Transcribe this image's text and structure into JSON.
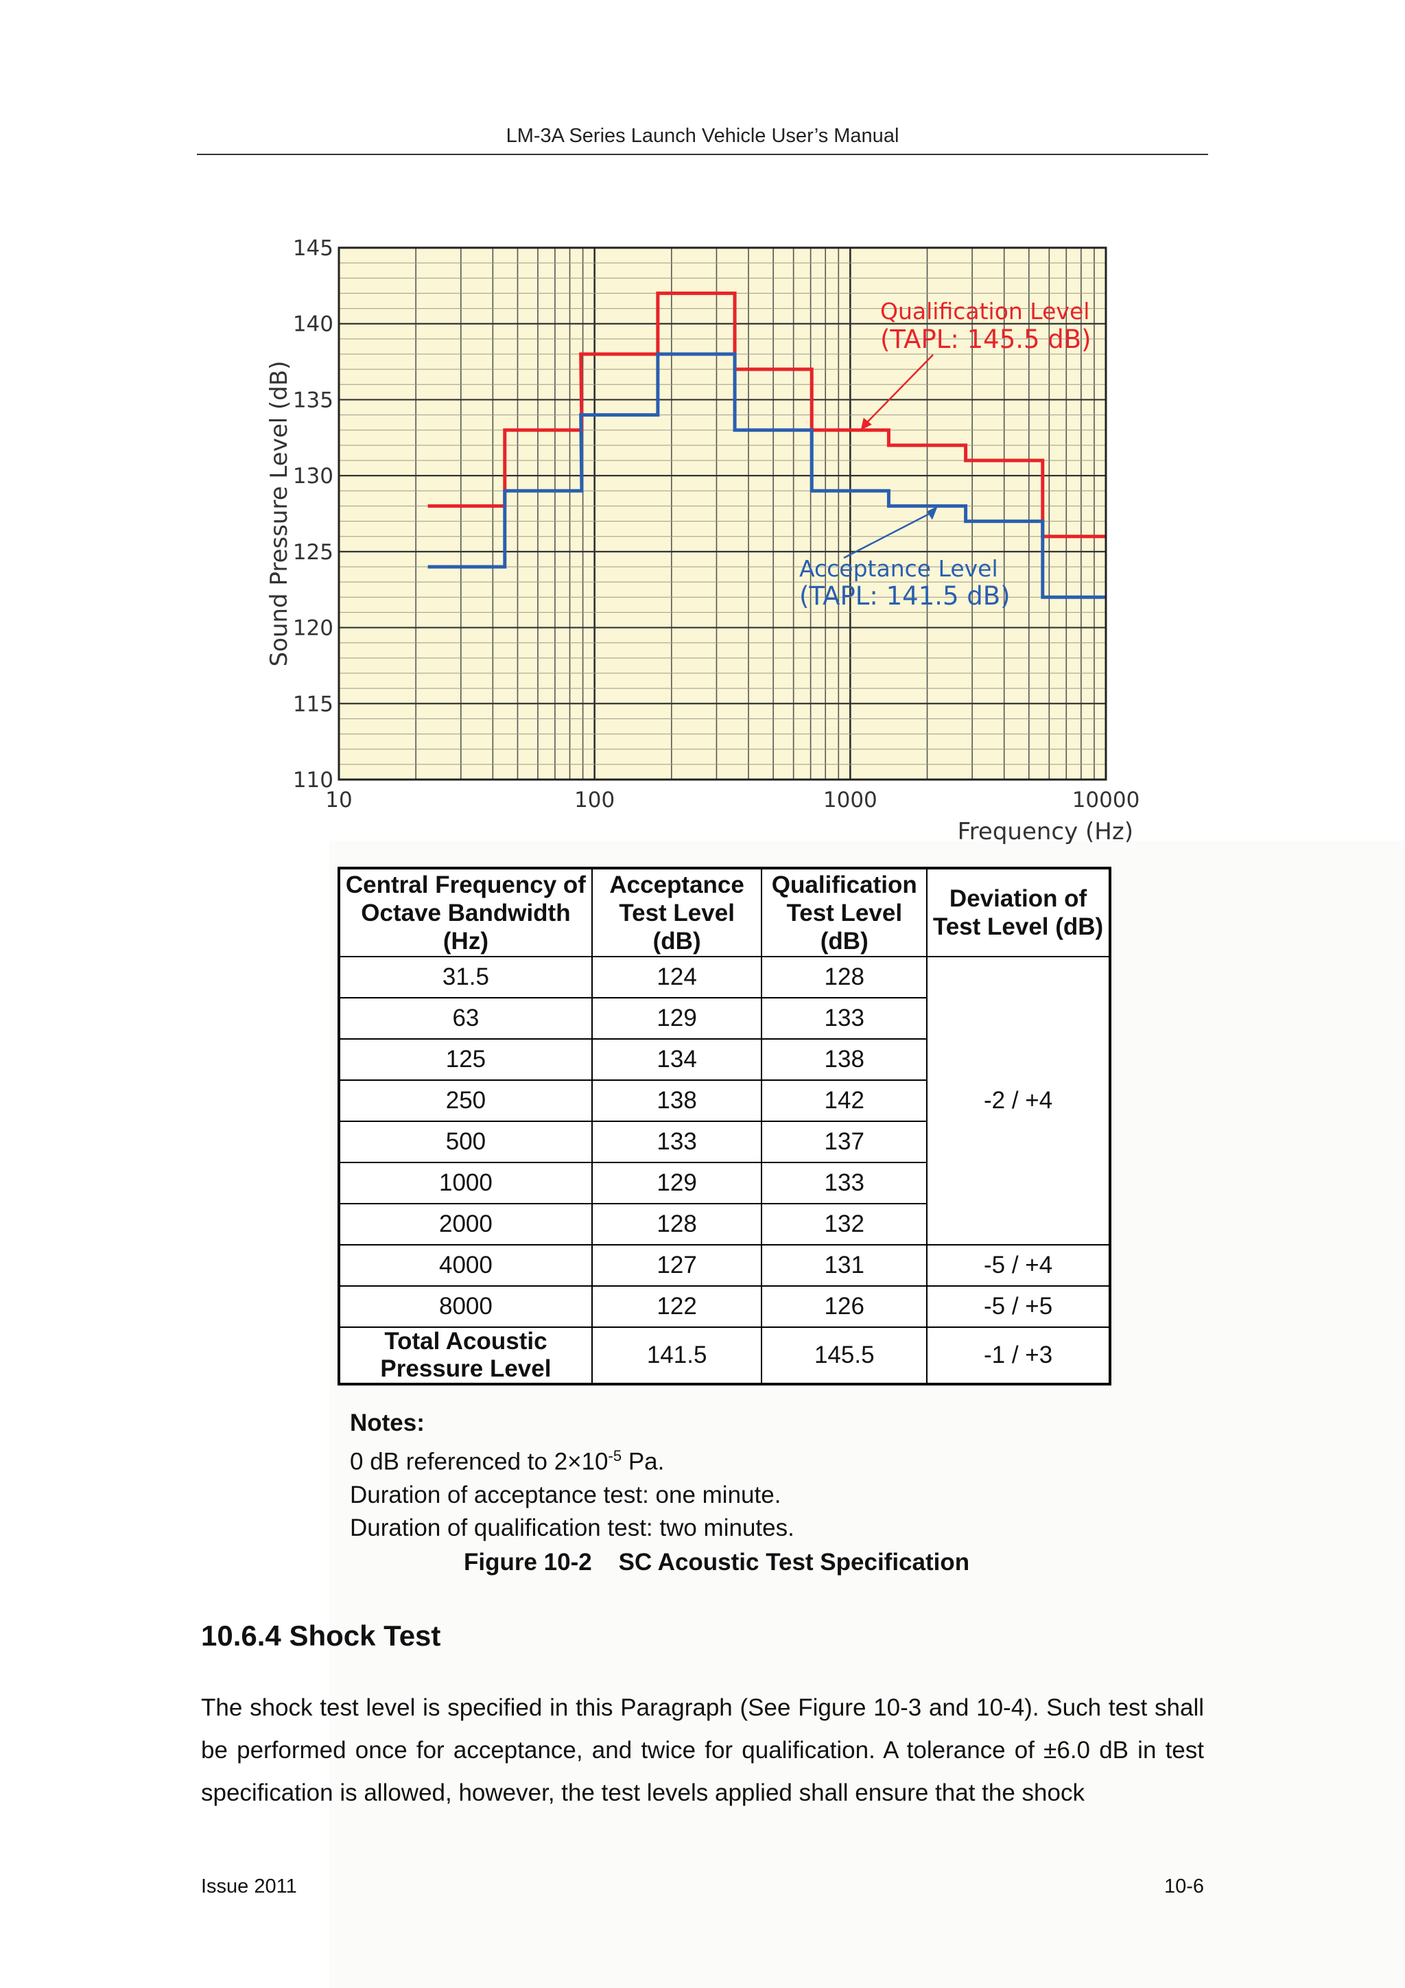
{
  "header": {
    "title": "LM-3A Series Launch Vehicle User’s Manual"
  },
  "chart_data": {
    "type": "line",
    "step": true,
    "x_scale": "log",
    "xlim": [
      10,
      10000
    ],
    "ylim": [
      110,
      145
    ],
    "ylabel": "Sound Pressure Level (dB)",
    "xlabel": "Frequency (Hz)",
    "x_ticks": [
      "10",
      "100",
      "1000",
      "10000"
    ],
    "y_ticks": [
      "110",
      "115",
      "120",
      "125",
      "130",
      "135",
      "140",
      "145"
    ],
    "band_centers": [
      31.5,
      63,
      125,
      250,
      500,
      1000,
      2000,
      4000,
      8000
    ],
    "series": [
      {
        "name": "Qualification Level",
        "color": "#e8232a",
        "values": [
          128,
          133,
          138,
          142,
          137,
          133,
          132,
          131,
          126
        ]
      },
      {
        "name": "Acceptance Level",
        "color": "#2a5fb0",
        "values": [
          124,
          129,
          134,
          138,
          133,
          129,
          128,
          127,
          122
        ]
      }
    ],
    "annotations": [
      {
        "series": "Qualification Level",
        "line1": "Qualification Level",
        "line2": "(TAPL: 145.5 dB)",
        "color": "#e8232a"
      },
      {
        "series": "Acceptance Level",
        "line1": "Acceptance Level",
        "line2": "(TAPL: 141.5 dB)",
        "color": "#2a5fb0"
      }
    ],
    "background": "#fbf6d5",
    "grid": true
  },
  "table": {
    "headers": [
      "Central Frequency of Octave Bandwidth (Hz)",
      "Acceptance Test Level (dB)",
      "Qualification Test Level (dB)",
      "Deviation of Test Level (dB)"
    ],
    "rows": [
      [
        "31.5",
        "124",
        "128"
      ],
      [
        "63",
        "129",
        "133"
      ],
      [
        "125",
        "134",
        "138"
      ],
      [
        "250",
        "138",
        "142"
      ],
      [
        "500",
        "133",
        "137"
      ],
      [
        "1000",
        "129",
        "133"
      ],
      [
        "2000",
        "128",
        "132"
      ],
      [
        "4000",
        "127",
        "131",
        "-5 / +4"
      ],
      [
        "8000",
        "122",
        "126",
        "-5 / +5"
      ]
    ],
    "merged_deviation": "-2 / +4",
    "total_row": [
      "Total Acoustic Pressure Level",
      "141.5",
      "145.5",
      "-1 / +3"
    ]
  },
  "notes": {
    "title": "Notes:",
    "line1_prefix": "0 dB referenced to 2×10",
    "line1_sup": "-5",
    "line1_suffix": " Pa.",
    "line2": "Duration of acceptance test: one minute.",
    "line3": "Duration of qualification test: two minutes."
  },
  "caption": "Figure 10-2    SC Acoustic Test Specification",
  "section": {
    "title": "10.6.4 Shock Test"
  },
  "paragraph": "The shock test level is specified in this Paragraph (See Figure 10-3 and 10-4). Such test shall be performed once for acceptance, and twice for qualification. A tolerance of ±6.0 dB in test specification is allowed, however, the test levels applied shall ensure that the shock",
  "footer": {
    "left": "Issue 2011",
    "right": "10-6"
  }
}
